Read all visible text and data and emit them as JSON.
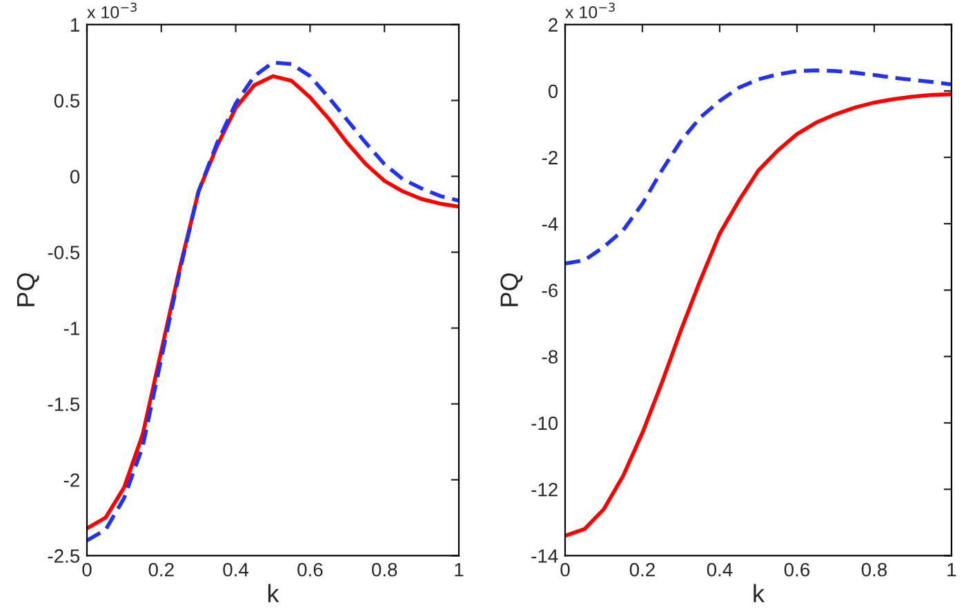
{
  "chart_data": [
    {
      "type": "line",
      "xlabel": "k",
      "ylabel": "PQ",
      "annotations": [
        "x 10$^{−3}$"
      ],
      "xlim": [
        0,
        1
      ],
      "ylim": [
        -2.5,
        1
      ],
      "xticks": [
        0,
        0.2,
        0.4,
        0.6,
        0.8,
        1
      ],
      "yticks": [
        -2.5,
        -2,
        -1.5,
        -1,
        -0.5,
        0,
        0.5,
        1
      ],
      "grid": false,
      "legend": false,
      "x": [
        0,
        0.05,
        0.1,
        0.15,
        0.2,
        0.25,
        0.3,
        0.35,
        0.4,
        0.45,
        0.5,
        0.55,
        0.6,
        0.65,
        0.7,
        0.75,
        0.8,
        0.85,
        0.9,
        0.95,
        1
      ],
      "series": [
        {
          "color": "#ff0000",
          "line_style": "solid",
          "values": [
            -2.32,
            -2.25,
            -2.05,
            -1.7,
            -1.15,
            -0.6,
            -0.1,
            0.2,
            0.45,
            0.6,
            0.66,
            0.63,
            0.52,
            0.38,
            0.22,
            0.08,
            -0.03,
            -0.1,
            -0.15,
            -0.18,
            -0.2
          ]
        },
        {
          "color": "#2233ee",
          "line_style": "dashed",
          "values": [
            -2.4,
            -2.33,
            -2.12,
            -1.78,
            -1.2,
            -0.62,
            -0.1,
            0.22,
            0.48,
            0.66,
            0.75,
            0.74,
            0.66,
            0.52,
            0.37,
            0.22,
            0.08,
            -0.02,
            -0.08,
            -0.13,
            -0.16
          ]
        }
      ]
    },
    {
      "type": "line",
      "xlabel": "k",
      "ylabel": "PQ",
      "annotations": [
        "x 10$^{−3}$"
      ],
      "xlim": [
        0,
        1
      ],
      "ylim": [
        -14,
        2
      ],
      "xticks": [
        0,
        0.2,
        0.4,
        0.6,
        0.8,
        1
      ],
      "yticks": [
        -14,
        -12,
        -10,
        -8,
        -6,
        -4,
        -2,
        0,
        2
      ],
      "grid": false,
      "legend": false,
      "x": [
        0,
        0.05,
        0.1,
        0.15,
        0.2,
        0.25,
        0.3,
        0.35,
        0.4,
        0.45,
        0.5,
        0.55,
        0.6,
        0.65,
        0.7,
        0.75,
        0.8,
        0.85,
        0.9,
        0.95,
        1
      ],
      "series": [
        {
          "color": "#ff0000",
          "line_style": "solid",
          "values": [
            -13.4,
            -13.2,
            -12.6,
            -11.6,
            -10.3,
            -8.8,
            -7.2,
            -5.7,
            -4.3,
            -3.3,
            -2.4,
            -1.8,
            -1.3,
            -0.95,
            -0.7,
            -0.5,
            -0.35,
            -0.25,
            -0.17,
            -0.12,
            -0.1
          ]
        },
        {
          "color": "#2233ee",
          "line_style": "dashed",
          "values": [
            -5.2,
            -5.1,
            -4.7,
            -4.2,
            -3.4,
            -2.4,
            -1.5,
            -0.8,
            -0.3,
            0.1,
            0.35,
            0.5,
            0.6,
            0.62,
            0.6,
            0.55,
            0.48,
            0.4,
            0.33,
            0.27,
            0.2
          ]
        }
      ]
    }
  ]
}
